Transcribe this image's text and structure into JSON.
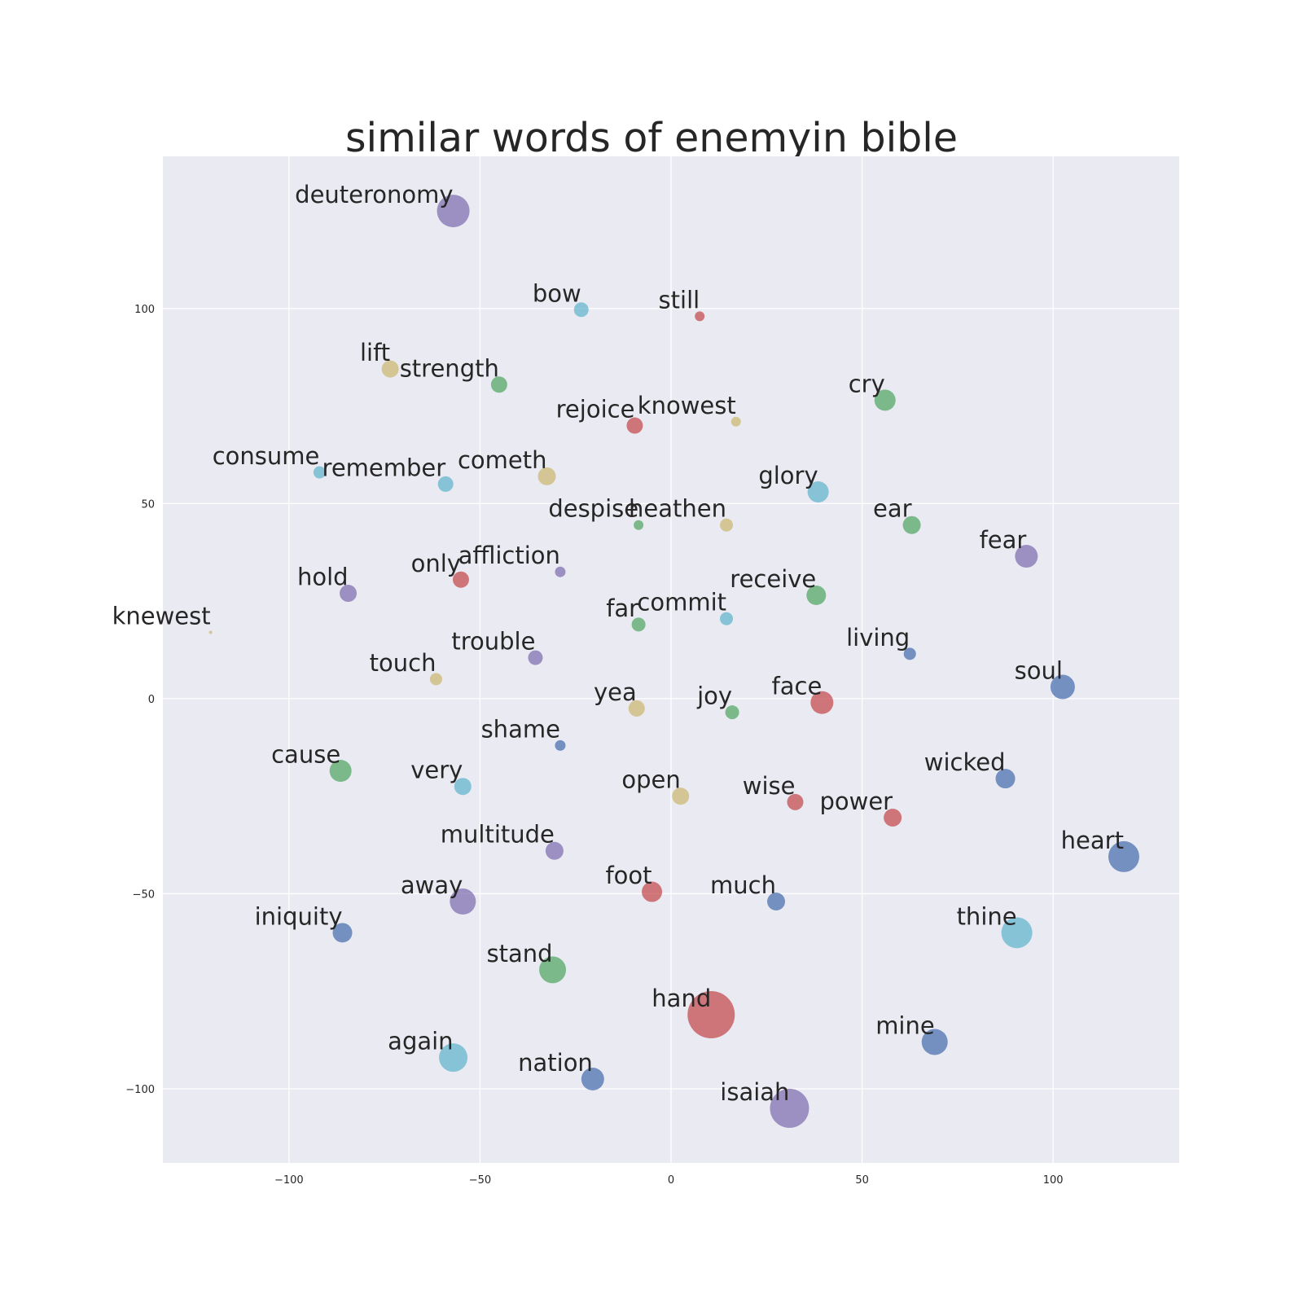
{
  "chart_data": {
    "type": "scatter",
    "title": "similar words of enemyin bible",
    "xlabel": "",
    "ylabel": "",
    "xlim": [
      -133,
      133
    ],
    "ylim": [
      -119,
      139
    ],
    "grid": true,
    "xticks": [
      -100,
      -50,
      0,
      50,
      100
    ],
    "yticks": [
      100,
      50,
      0,
      -50,
      -100
    ],
    "xtick_labels": [
      "−100",
      "−50",
      "0",
      "50",
      "100"
    ],
    "ytick_labels": [
      "100",
      "50",
      "0",
      "−50",
      "−100"
    ],
    "colors": {
      "blue": "#4c72b0",
      "green": "#55a868",
      "red": "#c44e52",
      "purple": "#8172b2",
      "yellow": "#ccb974",
      "cyan": "#64b5cd",
      "background": "#eaeaf2"
    },
    "points": [
      {
        "label": "deuteronomy",
        "x": -57,
        "y": 125,
        "size": 20,
        "color": "purple"
      },
      {
        "label": "bow",
        "x": -23.5,
        "y": 99.7,
        "size": 9,
        "color": "cyan"
      },
      {
        "label": "still",
        "x": 7.5,
        "y": 98,
        "size": 6,
        "color": "red"
      },
      {
        "label": "lift",
        "x": -73.5,
        "y": 84.5,
        "size": 10.5,
        "color": "yellow"
      },
      {
        "label": "strength",
        "x": -45,
        "y": 80.5,
        "size": 10,
        "color": "green"
      },
      {
        "label": "cry",
        "x": 56,
        "y": 76.5,
        "size": 13,
        "color": "green"
      },
      {
        "label": "rejoice",
        "x": -9.5,
        "y": 70,
        "size": 10,
        "color": "red"
      },
      {
        "label": "knowest",
        "x": 17,
        "y": 71,
        "size": 6,
        "color": "yellow"
      },
      {
        "label": "consume",
        "x": -92,
        "y": 58,
        "size": 7.5,
        "color": "cyan"
      },
      {
        "label": "remember",
        "x": -59,
        "y": 55,
        "size": 9.5,
        "color": "cyan"
      },
      {
        "label": "cometh",
        "x": -32.5,
        "y": 57,
        "size": 11,
        "color": "yellow"
      },
      {
        "label": "glory",
        "x": 38.5,
        "y": 53,
        "size": 13,
        "color": "cyan"
      },
      {
        "label": "despise",
        "x": -8.5,
        "y": 44.5,
        "size": 6,
        "color": "green"
      },
      {
        "label": "heathen",
        "x": 14.5,
        "y": 44.5,
        "size": 8,
        "color": "yellow"
      },
      {
        "label": "ear",
        "x": 63,
        "y": 44.5,
        "size": 11,
        "color": "green"
      },
      {
        "label": "fear",
        "x": 93,
        "y": 36.5,
        "size": 14,
        "color": "purple"
      },
      {
        "label": "only",
        "x": -55,
        "y": 30.5,
        "size": 10,
        "color": "red"
      },
      {
        "label": "affliction",
        "x": -29,
        "y": 32.5,
        "size": 6.5,
        "color": "purple"
      },
      {
        "label": "hold",
        "x": -84.5,
        "y": 27,
        "size": 10.5,
        "color": "purple"
      },
      {
        "label": "receive",
        "x": 38,
        "y": 26.5,
        "size": 12,
        "color": "green"
      },
      {
        "label": "far",
        "x": -8.5,
        "y": 19,
        "size": 8.5,
        "color": "green"
      },
      {
        "label": "commit",
        "x": 14.5,
        "y": 20.5,
        "size": 8,
        "color": "cyan"
      },
      {
        "label": "knewest",
        "x": -120.5,
        "y": 17,
        "size": 2,
        "color": "yellow"
      },
      {
        "label": "living",
        "x": 62.5,
        "y": 11.5,
        "size": 7.5,
        "color": "blue"
      },
      {
        "label": "trouble",
        "x": -35.5,
        "y": 10.5,
        "size": 9,
        "color": "purple"
      },
      {
        "label": "touch",
        "x": -61.5,
        "y": 5,
        "size": 7.5,
        "color": "yellow"
      },
      {
        "label": "soul",
        "x": 102.5,
        "y": 3,
        "size": 15,
        "color": "blue"
      },
      {
        "label": "yea",
        "x": -9,
        "y": -2.5,
        "size": 10,
        "color": "yellow"
      },
      {
        "label": "joy",
        "x": 16,
        "y": -3.5,
        "size": 8.5,
        "color": "green"
      },
      {
        "label": "face",
        "x": 39.5,
        "y": -1,
        "size": 14,
        "color": "red"
      },
      {
        "label": "shame",
        "x": -29,
        "y": -12,
        "size": 6.5,
        "color": "blue"
      },
      {
        "label": "cause",
        "x": -86.5,
        "y": -18.5,
        "size": 13.5,
        "color": "green"
      },
      {
        "label": "very",
        "x": -54.5,
        "y": -22.5,
        "size": 10.5,
        "color": "cyan"
      },
      {
        "label": "wicked",
        "x": 87.5,
        "y": -20.5,
        "size": 12,
        "color": "blue"
      },
      {
        "label": "open",
        "x": 2.5,
        "y": -25,
        "size": 10.5,
        "color": "yellow"
      },
      {
        "label": "wise",
        "x": 32.5,
        "y": -26.5,
        "size": 10,
        "color": "red"
      },
      {
        "label": "power",
        "x": 58,
        "y": -30.5,
        "size": 11,
        "color": "red"
      },
      {
        "label": "multitude",
        "x": -30.5,
        "y": -39,
        "size": 11,
        "color": "purple"
      },
      {
        "label": "heart",
        "x": 118.5,
        "y": -40.5,
        "size": 19,
        "color": "blue"
      },
      {
        "label": "foot",
        "x": -5,
        "y": -49.5,
        "size": 12.5,
        "color": "red"
      },
      {
        "label": "away",
        "x": -54.5,
        "y": -52,
        "size": 16,
        "color": "purple"
      },
      {
        "label": "much",
        "x": 27.5,
        "y": -52,
        "size": 11,
        "color": "blue"
      },
      {
        "label": "iniquity",
        "x": -86,
        "y": -60,
        "size": 12,
        "color": "blue"
      },
      {
        "label": "thine",
        "x": 90.5,
        "y": -60,
        "size": 19,
        "color": "cyan"
      },
      {
        "label": "stand",
        "x": -31,
        "y": -69.5,
        "size": 16.5,
        "color": "green"
      },
      {
        "label": "hand",
        "x": 10.5,
        "y": -81,
        "size": 29,
        "color": "red"
      },
      {
        "label": "mine",
        "x": 69,
        "y": -88,
        "size": 16,
        "color": "blue"
      },
      {
        "label": "again",
        "x": -57,
        "y": -92,
        "size": 17.5,
        "color": "cyan"
      },
      {
        "label": "nation",
        "x": -20.5,
        "y": -97.5,
        "size": 14,
        "color": "blue"
      },
      {
        "label": "isaiah",
        "x": 31,
        "y": -105,
        "size": 24,
        "color": "purple"
      }
    ]
  }
}
